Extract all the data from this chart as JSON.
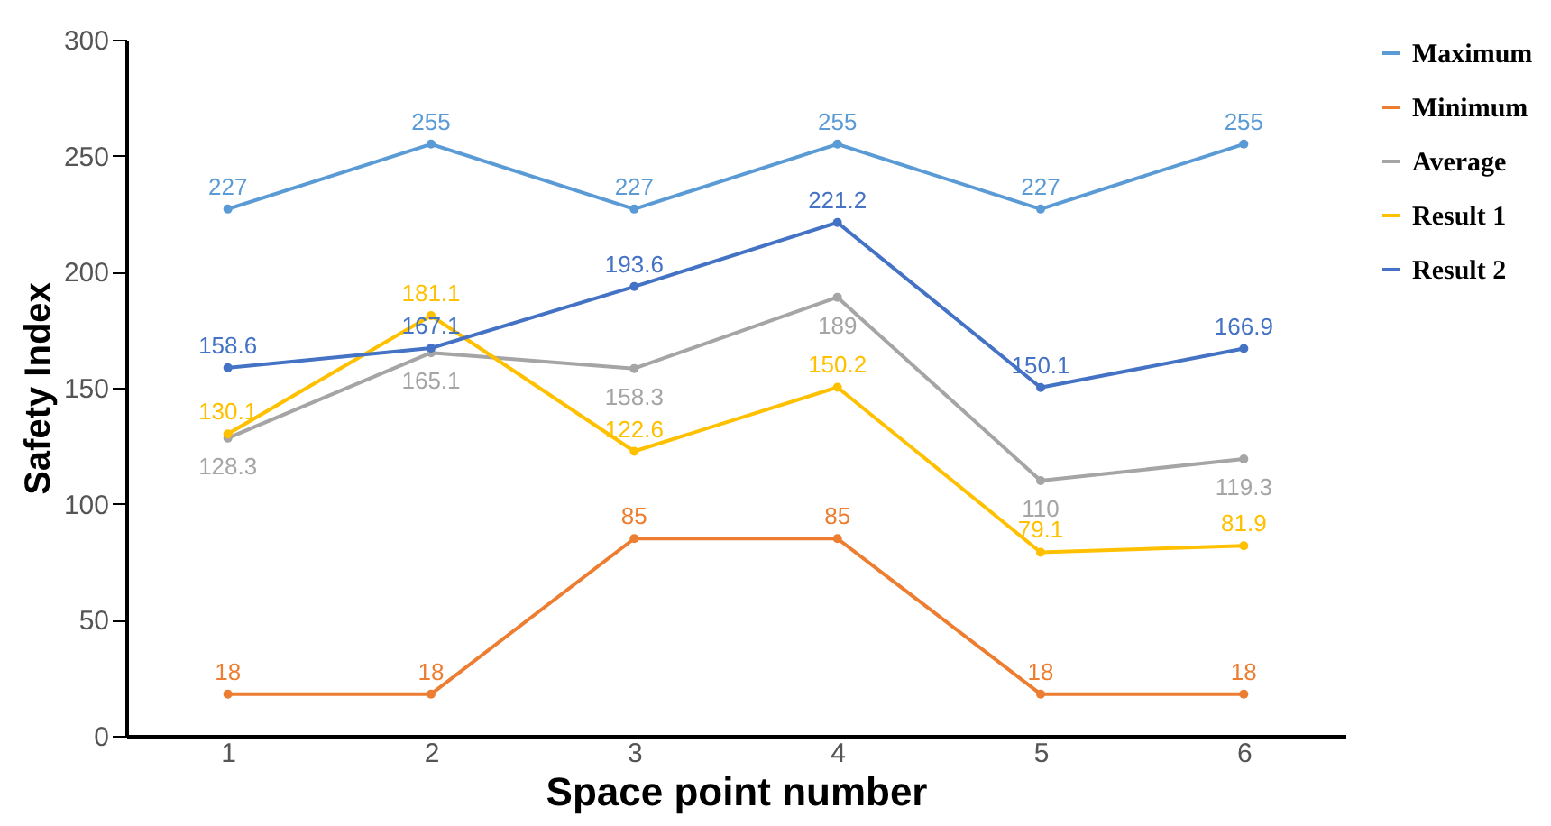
{
  "chart_data": {
    "type": "line",
    "xlabel": "Space point number",
    "ylabel": "Safety Index",
    "categories": [
      "1",
      "2",
      "3",
      "4",
      "5",
      "6"
    ],
    "series": [
      {
        "name": "Maximum",
        "color": "#5b9bd5",
        "values": [
          227,
          255,
          227,
          255,
          227,
          255
        ]
      },
      {
        "name": "Minimum",
        "color": "#ed7d31",
        "values": [
          18,
          18,
          85,
          85,
          18,
          18
        ]
      },
      {
        "name": "Average",
        "color": "#a5a5a5",
        "values": [
          128.3,
          165.1,
          158.3,
          189,
          110,
          119.3
        ]
      },
      {
        "name": "Result 1",
        "color": "#ffc000",
        "values": [
          130.1,
          181.1,
          122.6,
          150.2,
          79.1,
          81.9
        ]
      },
      {
        "name": "Result 2",
        "color": "#4472c4",
        "values": [
          158.6,
          167.1,
          193.6,
          221.2,
          150.1,
          166.9
        ]
      }
    ],
    "ylim": [
      0,
      300
    ],
    "yticks": [
      0,
      50,
      100,
      150,
      200,
      250,
      300
    ],
    "legend": "right",
    "marker": "circle",
    "data_labels": true
  }
}
